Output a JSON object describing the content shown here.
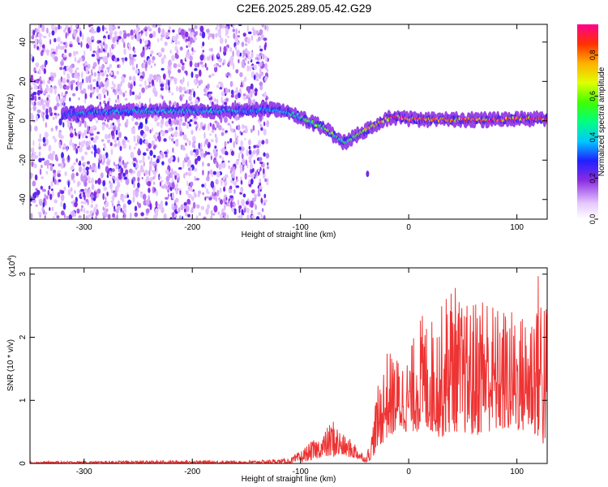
{
  "title": "C2E6.2025.289.05.42.G29",
  "chart_data": [
    {
      "type": "heatmap",
      "xlabel": "Height of straight line (km)",
      "ylabel": "Frequency (Hz)",
      "xlim": [
        -350,
        128
      ],
      "ylim": [
        -50,
        49
      ],
      "xticks": [
        -300,
        -200,
        -100,
        0,
        100
      ],
      "yticks": [
        -40,
        -20,
        0,
        20,
        40
      ],
      "colorbar": {
        "label": "Normalized spectral amplitude",
        "range": [
          0.0,
          0.95
        ],
        "ticks": [
          0.0,
          0.2,
          0.4,
          0.6,
          0.8
        ],
        "tick_labels": [
          "0.0",
          "0.2",
          "0.4",
          "0.6",
          "0.8"
        ]
      },
      "ridge": {
        "x": [
          -320,
          -300,
          -250,
          -200,
          -150,
          -130,
          -110,
          -100,
          -90,
          -80,
          -70,
          -60,
          -55,
          -50,
          -40,
          -30,
          -20,
          -10,
          0,
          20,
          50,
          80,
          100,
          128
        ],
        "frequency": [
          3,
          4,
          5,
          5,
          5,
          6,
          4,
          2,
          -1,
          -3,
          -7,
          -11,
          -10,
          -8,
          -5,
          -2,
          1,
          2,
          1,
          0.5,
          0.5,
          0.5,
          1,
          1
        ],
        "amplitude": [
          0.3,
          0.4,
          0.45,
          0.45,
          0.4,
          0.4,
          0.45,
          0.5,
          0.6,
          0.7,
          0.6,
          0.5,
          0.5,
          0.6,
          0.75,
          0.85,
          0.9,
          0.9,
          0.9,
          0.9,
          0.9,
          0.9,
          0.9,
          0.9
        ]
      },
      "noise_region_x": [
        -350,
        -130
      ]
    },
    {
      "type": "line",
      "xlabel": "Height of straight line (km)",
      "ylabel": "SNR (10 * v/v)",
      "scale_label": "(x10",
      "scale_exponent": "4",
      "scale_close": ")",
      "xlim": [
        -350,
        128
      ],
      "ylim": [
        0,
        3.1
      ],
      "xticks": [
        -300,
        -200,
        -100,
        0,
        100
      ],
      "yticks": [
        0,
        1,
        2,
        3
      ],
      "color": "#ee3333",
      "envelope": {
        "x": [
          -350,
          -200,
          -150,
          -110,
          -100,
          -90,
          -80,
          -70,
          -60,
          -50,
          -40,
          -35,
          -30,
          -25,
          -20,
          -10,
          0,
          10,
          20,
          30,
          40,
          50,
          60,
          70,
          80,
          90,
          100,
          110,
          120,
          125,
          128
        ],
        "low": [
          0,
          0,
          0,
          0,
          0.02,
          0.05,
          0.1,
          0.1,
          0.12,
          0.08,
          0.02,
          0.05,
          0.2,
          0.3,
          0.4,
          0.5,
          0.5,
          0.5,
          0.5,
          0.4,
          0.5,
          0.5,
          0.4,
          0.5,
          0.5,
          0.5,
          0.5,
          0.5,
          0.4,
          0.2,
          0.5
        ],
        "high": [
          0.03,
          0.05,
          0.04,
          0.08,
          0.2,
          0.35,
          0.45,
          0.72,
          0.45,
          0.35,
          0.1,
          0.4,
          1.1,
          1.5,
          1.8,
          1.7,
          1.7,
          2.4,
          2.3,
          2.5,
          3.0,
          2.5,
          2.6,
          2.9,
          2.5,
          2.5,
          2.4,
          2.4,
          3.1,
          3.0,
          2.5
        ]
      }
    }
  ]
}
